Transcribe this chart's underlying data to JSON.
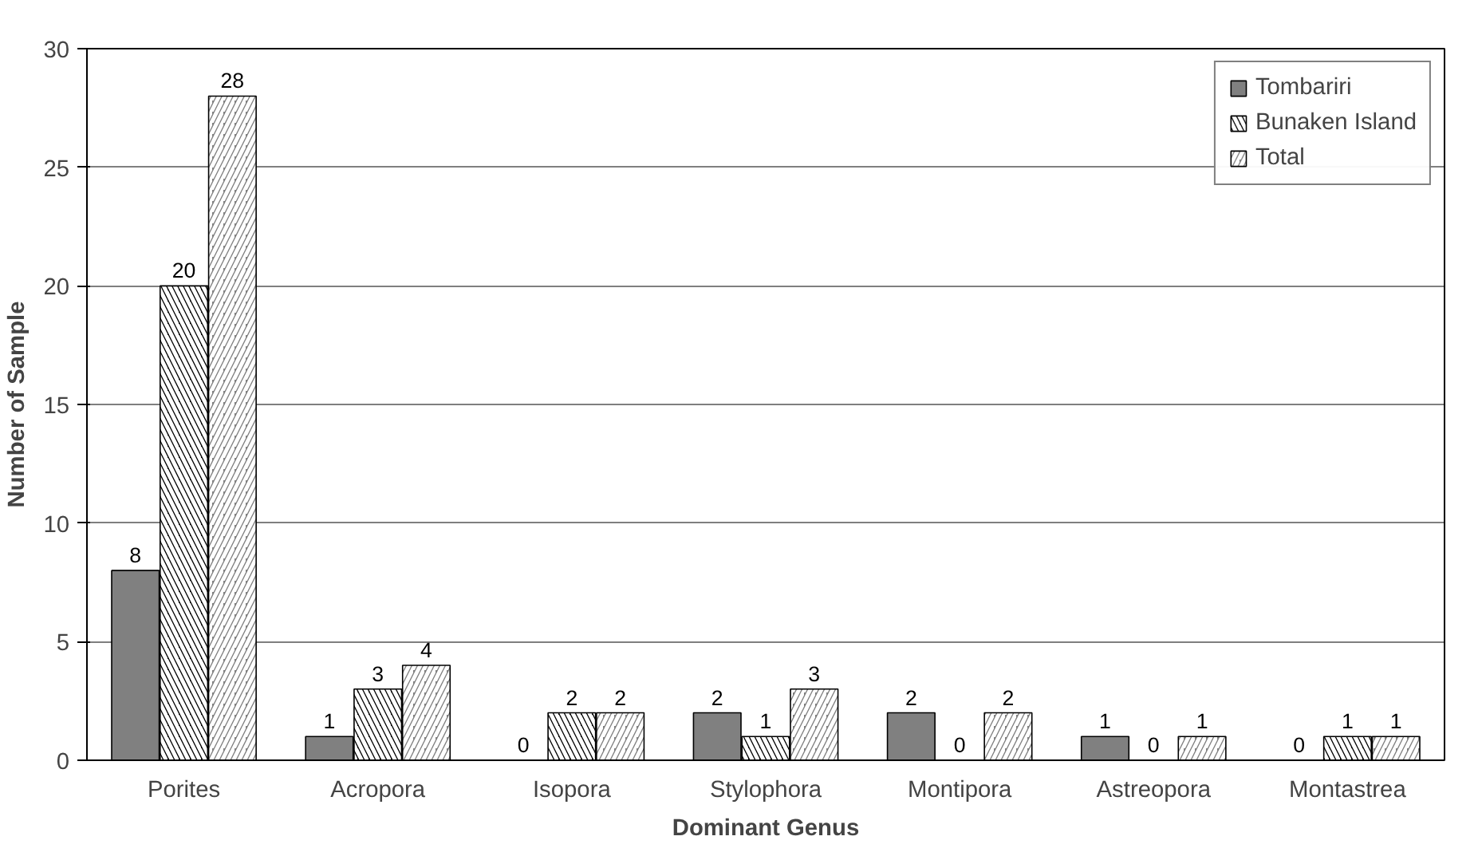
{
  "chart_data": {
    "type": "bar",
    "xlabel": "Dominant Genus",
    "ylabel": "Number of Sample",
    "categories": [
      "Porites",
      "Acropora",
      "Isopora",
      "Stylophora",
      "Montipora",
      "Astreopora",
      "Montastrea"
    ],
    "series": [
      {
        "name": "Tombariri",
        "color": "#808080",
        "values": [
          8,
          1,
          0,
          2,
          2,
          1,
          0
        ]
      },
      {
        "name": "Bunaken Island",
        "color": "#000000",
        "values": [
          20,
          3,
          2,
          1,
          0,
          0,
          1
        ]
      },
      {
        "name": "Total",
        "color": "#808080",
        "values": [
          28,
          4,
          2,
          3,
          2,
          1,
          1
        ]
      }
    ],
    "ylim": [
      0,
      30
    ],
    "yticks": [
      0,
      5,
      10,
      15,
      20,
      25,
      30
    ],
    "grid": "y",
    "legend": "top right",
    "data_labels": true
  }
}
